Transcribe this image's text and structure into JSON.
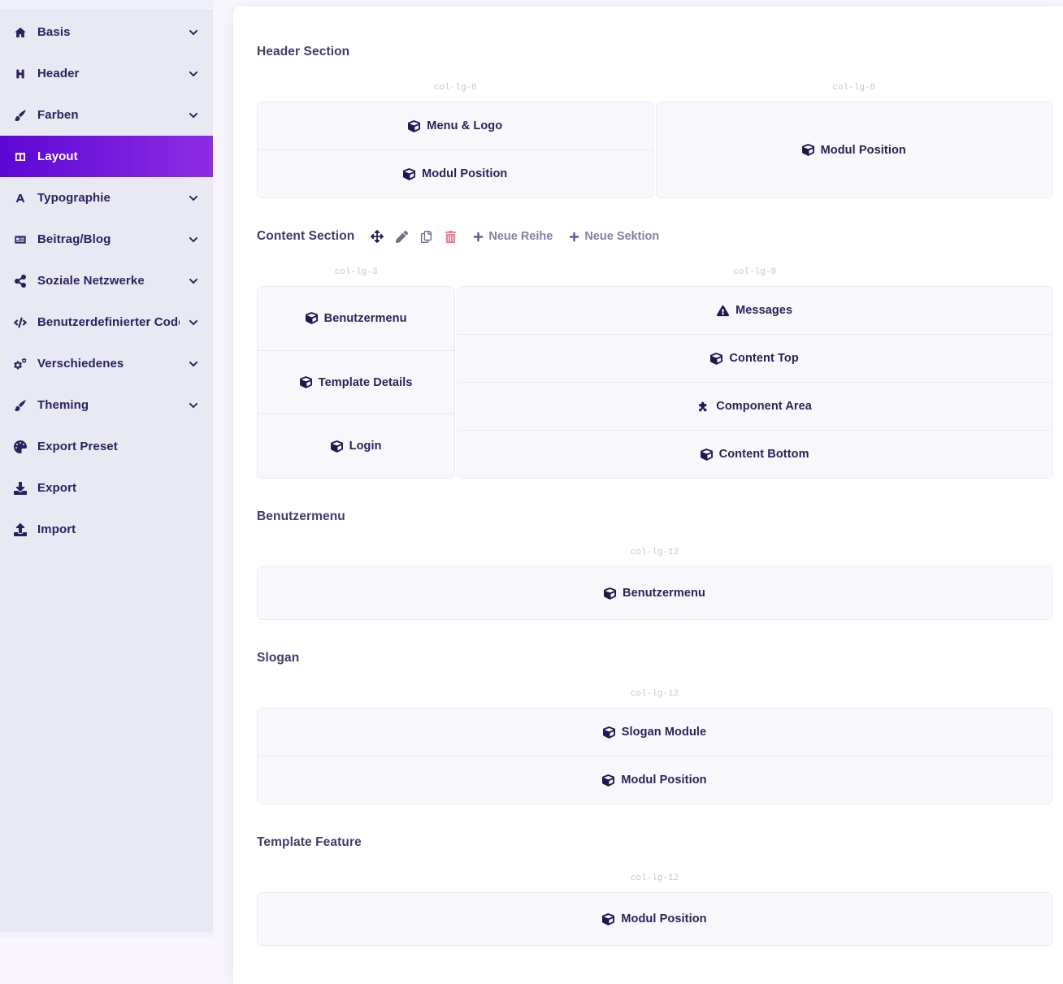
{
  "sidebar": {
    "items": [
      {
        "label": "Basis",
        "icon": "home",
        "chevron": true,
        "active": false
      },
      {
        "label": "Header",
        "icon": "heading",
        "chevron": true,
        "active": false
      },
      {
        "label": "Farben",
        "icon": "paint-brush",
        "chevron": true,
        "active": false
      },
      {
        "label": "Layout",
        "icon": "columns",
        "chevron": false,
        "active": true
      },
      {
        "label": "Typographie",
        "icon": "font",
        "chevron": true,
        "active": false
      },
      {
        "label": "Beitrag/Blog",
        "icon": "newspaper",
        "chevron": true,
        "active": false
      },
      {
        "label": "Soziale Netzwerke",
        "icon": "share",
        "chevron": true,
        "active": false
      },
      {
        "label": "Benutzerdefinierter Code",
        "icon": "code",
        "chevron": true,
        "active": false
      },
      {
        "label": "Verschiedenes",
        "icon": "cogs",
        "chevron": true,
        "active": false
      },
      {
        "label": "Theming",
        "icon": "paint-brush",
        "chevron": true,
        "active": false
      },
      {
        "label": "Export Preset",
        "icon": "palette",
        "chevron": false,
        "active": false
      },
      {
        "label": "Export",
        "icon": "download",
        "chevron": false,
        "active": false
      },
      {
        "label": "Import",
        "icon": "upload",
        "chevron": false,
        "active": false
      }
    ]
  },
  "toolbar": {
    "new_row_label": "Neue Reihe",
    "new_section_label": "Neue Sektion"
  },
  "sections": [
    {
      "title": "Header Section",
      "toolbar": false,
      "columns": [
        {
          "size_label": "col-lg-6",
          "cells": [
            {
              "label": "Menu & Logo",
              "icon": "cube"
            },
            {
              "label": "Modul Position",
              "icon": "cube"
            }
          ]
        },
        {
          "size_label": "col-lg-6",
          "cells": [
            {
              "label": "Modul Position",
              "icon": "cube"
            }
          ]
        }
      ]
    },
    {
      "title": "Content Section",
      "toolbar": true,
      "columns": [
        {
          "size_label": "col-lg-3",
          "cells": [
            {
              "label": "Benutzermenu",
              "icon": "cube"
            },
            {
              "label": "Template Details",
              "icon": "cube"
            },
            {
              "label": "Login",
              "icon": "cube"
            }
          ]
        },
        {
          "size_label": "col-lg-9",
          "cells": [
            {
              "label": "Messages",
              "icon": "warning"
            },
            {
              "label": "Content Top",
              "icon": "cube"
            },
            {
              "label": "Component Area",
              "icon": "puzzle"
            },
            {
              "label": "Content Bottom",
              "icon": "cube"
            }
          ]
        }
      ]
    },
    {
      "title": "Benutzermenu",
      "toolbar": false,
      "columns": [
        {
          "size_label": "col-lg-12",
          "cells": [
            {
              "label": "Benutzermenu",
              "icon": "cube"
            }
          ]
        }
      ]
    },
    {
      "title": "Slogan",
      "toolbar": false,
      "columns": [
        {
          "size_label": "col-lg-12",
          "cells": [
            {
              "label": "Slogan Module",
              "icon": "cube"
            },
            {
              "label": "Modul Position",
              "icon": "cube"
            }
          ]
        }
      ]
    },
    {
      "title": "Template Feature",
      "toolbar": false,
      "columns": [
        {
          "size_label": "col-lg-12",
          "cells": [
            {
              "label": "Modul Position",
              "icon": "cube"
            }
          ]
        }
      ]
    }
  ],
  "colors": {
    "sidebar_bg": "#e9e9f4",
    "active_gradient_start": "#5c07d6",
    "active_gradient_end": "#8e2de2",
    "text_indigo": "#2a2158",
    "cell_bg": "#f8f8fc",
    "cell_border": "#eae9f2",
    "danger": "#ec8093"
  }
}
